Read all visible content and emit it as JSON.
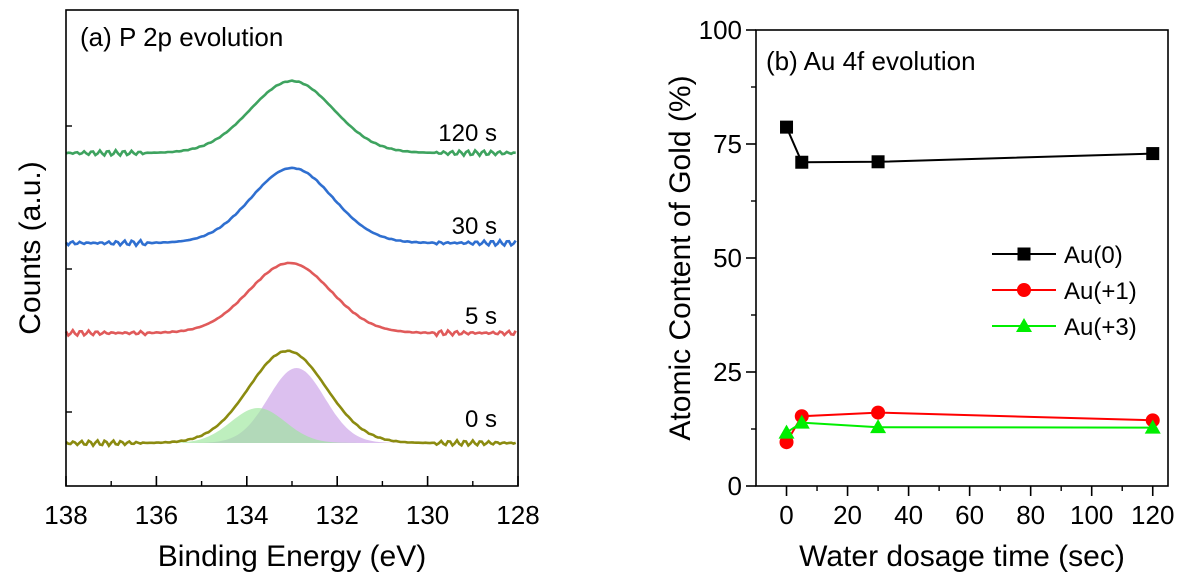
{
  "chart_data": [
    {
      "type": "line",
      "panel": "(a) P 2p evolution",
      "xlabel": "Binding Energy (eV)",
      "ylabel": "Counts (a.u.)",
      "xlim": [
        138,
        128
      ],
      "x_reversed": true,
      "xticks": [
        "138",
        "136",
        "134",
        "132",
        "130",
        "128"
      ],
      "grid": false,
      "series": [
        {
          "name": "0 s",
          "color": "#8b8b10",
          "peak_center": 133.1,
          "peak_height": 0.92,
          "peak_width": 0.85,
          "components": [
            {
              "center": 132.9,
              "height": 0.75,
              "width": 0.62,
              "color": "#c99ee6"
            },
            {
              "center": 133.75,
              "height": 0.35,
              "width": 0.6,
              "color": "#9be69b"
            }
          ]
        },
        {
          "name": "5 s",
          "color": "#e05a5a",
          "peak_center": 133.05,
          "peak_height": 0.7,
          "peak_width": 0.9
        },
        {
          "name": "30 s",
          "color": "#2f6fd0",
          "peak_center": 133.0,
          "peak_height": 0.75,
          "peak_width": 0.9
        },
        {
          "name": "120 s",
          "color": "#3ea35f",
          "peak_center": 133.0,
          "peak_height": 0.72,
          "peak_width": 0.92
        }
      ]
    },
    {
      "type": "line",
      "panel": "(b) Au 4f evolution",
      "xlabel": "Water dosage time (sec)",
      "ylabel": "Atomic Content of Gold (%)",
      "xlim": [
        -10,
        125
      ],
      "ylim": [
        0,
        100
      ],
      "xticks": [
        0,
        20,
        40,
        60,
        80,
        100,
        120
      ],
      "yticks": [
        0,
        25,
        50,
        75,
        100
      ],
      "x": [
        0,
        5,
        30,
        120
      ],
      "grid": false,
      "legend_position": "right",
      "series": [
        {
          "name": "Au(0)",
          "marker": "square",
          "color": "#000000",
          "values": [
            78.7,
            71.0,
            71.1,
            72.9
          ]
        },
        {
          "name": "Au(+1)",
          "marker": "circle",
          "color": "#ff0000",
          "values": [
            9.6,
            15.3,
            16.1,
            14.4
          ]
        },
        {
          "name": "Au(+3)",
          "marker": "triangle",
          "color": "#00ee00",
          "values": [
            11.7,
            13.9,
            12.9,
            12.8
          ]
        }
      ]
    }
  ]
}
